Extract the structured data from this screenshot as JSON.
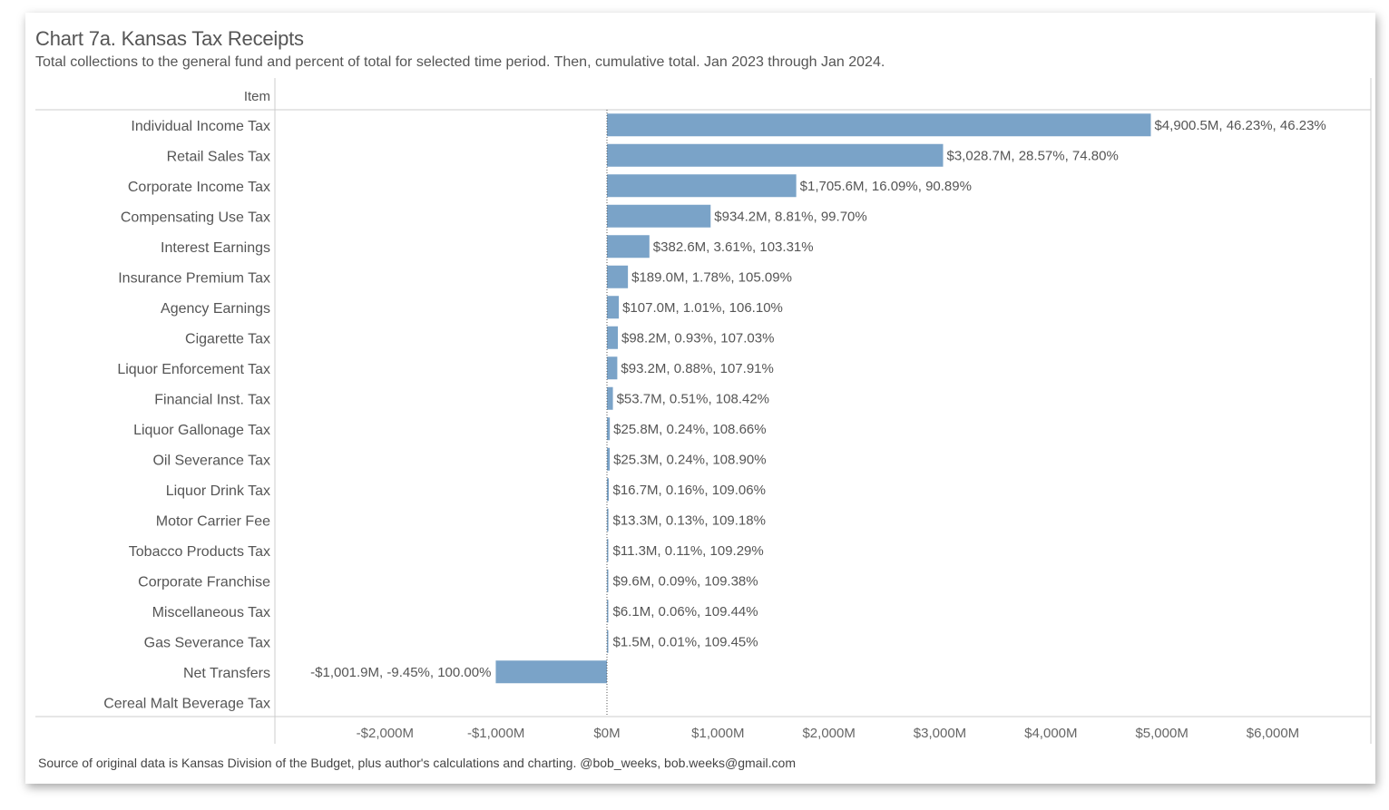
{
  "title": "Chart 7a. Kansas Tax Receipts",
  "subtitle": "Total collections to the general fund and percent of total for selected time period. Then, cumulative total. Jan 2023 through Jan 2024.",
  "footer": "Source of original data is Kansas Division of the Budget, plus author's calculations and charting. @bob_weeks, bob.weeks@gmail.com",
  "colors": {
    "bar": "#7aa3c8",
    "axis": "#cccccc",
    "zero_line": "#555555",
    "text": "#555555"
  },
  "chart_data": {
    "type": "bar",
    "orientation": "horizontal",
    "row_header": "Item",
    "xlim": [
      -3000,
      6800
    ],
    "x_ticks": [
      -2000,
      -1000,
      0,
      1000,
      2000,
      3000,
      4000,
      5000,
      6000
    ],
    "x_tick_labels": [
      "-$2,000M",
      "-$1,000M",
      "$0M",
      "$1,000M",
      "$2,000M",
      "$3,000M",
      "$4,000M",
      "$5,000M",
      "$6,000M"
    ],
    "grid": false,
    "categories": [
      "Individual Income Tax",
      "Retail Sales Tax",
      "Corporate Income Tax",
      "Compensating Use Tax",
      "Interest Earnings",
      "Insurance Premium Tax",
      "Agency Earnings",
      "Cigarette Tax",
      "Liquor Enforcement Tax",
      "Financial Inst. Tax",
      "Liquor Gallonage Tax",
      "Oil Severance Tax",
      "Liquor Drink Tax",
      "Motor Carrier Fee",
      "Tobacco Products Tax",
      "Corporate Franchise",
      "Miscellaneous Tax",
      "Gas Severance Tax",
      "Net Transfers",
      "Cereal Malt Beverage Tax"
    ],
    "values": [
      4900.5,
      3028.7,
      1705.6,
      934.2,
      382.6,
      189.0,
      107.0,
      98.2,
      93.2,
      53.7,
      25.8,
      25.3,
      16.7,
      13.3,
      11.3,
      9.6,
      6.1,
      1.5,
      -1001.9,
      0
    ],
    "labels": [
      "$4,900.5M,  46.23%, 46.23%",
      "$3,028.7M,  28.57%, 74.80%",
      "$1,705.6M,  16.09%, 90.89%",
      "$934.2M,  8.81%, 99.70%",
      "$382.6M,  3.61%, 103.31%",
      "$189.0M,  1.78%, 105.09%",
      "$107.0M,  1.01%, 106.10%",
      "$98.2M,  0.93%, 107.03%",
      "$93.2M,  0.88%, 107.91%",
      "$53.7M,  0.51%, 108.42%",
      "$25.8M,  0.24%, 108.66%",
      "$25.3M,  0.24%, 108.90%",
      "$16.7M,  0.16%, 109.06%",
      "$13.3M,  0.13%, 109.18%",
      "$11.3M,  0.11%, 109.29%",
      "$9.6M,  0.09%, 109.38%",
      "$6.1M,  0.06%, 109.44%",
      "$1.5M,  0.01%, 109.45%",
      "-$1,001.9M,  -9.45%, 100.00%",
      ""
    ]
  }
}
